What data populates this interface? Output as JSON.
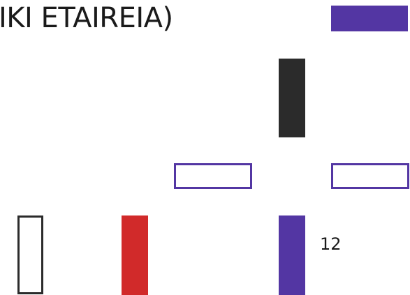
{
  "title": "IKI ETAIREIA)",
  "page_number": "12",
  "colors": {
    "purple": "#5336a3",
    "black": "#2b2b2b",
    "red": "#d12a2a",
    "background": "#ffffff"
  },
  "blocks": [
    {
      "name": "top-right",
      "style": "filled",
      "color": "purple",
      "orientation": "horizontal"
    },
    {
      "name": "center",
      "style": "filled",
      "color": "black",
      "orientation": "vertical"
    },
    {
      "name": "mid-left",
      "style": "outline",
      "color": "purple",
      "orientation": "horizontal"
    },
    {
      "name": "mid-right",
      "style": "outline",
      "color": "purple",
      "orientation": "horizontal"
    },
    {
      "name": "bottom-1",
      "style": "outline",
      "color": "black",
      "orientation": "vertical"
    },
    {
      "name": "bottom-2",
      "style": "filled",
      "color": "red",
      "orientation": "vertical"
    },
    {
      "name": "bottom-3",
      "style": "filled",
      "color": "purple",
      "orientation": "vertical"
    }
  ]
}
